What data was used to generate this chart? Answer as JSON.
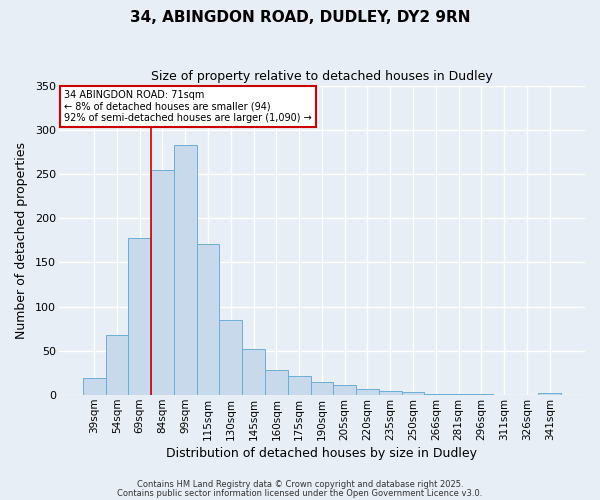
{
  "title": "34, ABINGDON ROAD, DUDLEY, DY2 9RN",
  "subtitle": "Size of property relative to detached houses in Dudley",
  "xlabel": "Distribution of detached houses by size in Dudley",
  "ylabel": "Number of detached properties",
  "bar_color": "#c8d9ec",
  "bar_edge_color": "#6aaed6",
  "categories": [
    "39sqm",
    "54sqm",
    "69sqm",
    "84sqm",
    "99sqm",
    "115sqm",
    "130sqm",
    "145sqm",
    "160sqm",
    "175sqm",
    "190sqm",
    "205sqm",
    "220sqm",
    "235sqm",
    "250sqm",
    "266sqm",
    "281sqm",
    "296sqm",
    "311sqm",
    "326sqm",
    "341sqm"
  ],
  "values": [
    19,
    68,
    178,
    254,
    283,
    171,
    85,
    52,
    28,
    22,
    15,
    11,
    7,
    5,
    4,
    1,
    1,
    1,
    0,
    0,
    2
  ],
  "ylim": [
    0,
    350
  ],
  "yticks": [
    0,
    50,
    100,
    150,
    200,
    250,
    300,
    350
  ],
  "annotation_title": "34 ABINGDON ROAD: 71sqm",
  "annotation_line1": "← 8% of detached houses are smaller (94)",
  "annotation_line2": "92% of semi-detached houses are larger (1,090) →",
  "vline_color": "#cc0000",
  "vline_x_index": 2.5,
  "bg_color": "#e8eef5",
  "grid_color": "#ffffff",
  "box_edge_color": "#cc0000",
  "footer1": "Contains HM Land Registry data © Crown copyright and database right 2025.",
  "footer2": "Contains public sector information licensed under the Open Government Licence v3.0.",
  "figsize": [
    6.0,
    5.0
  ],
  "dpi": 100
}
